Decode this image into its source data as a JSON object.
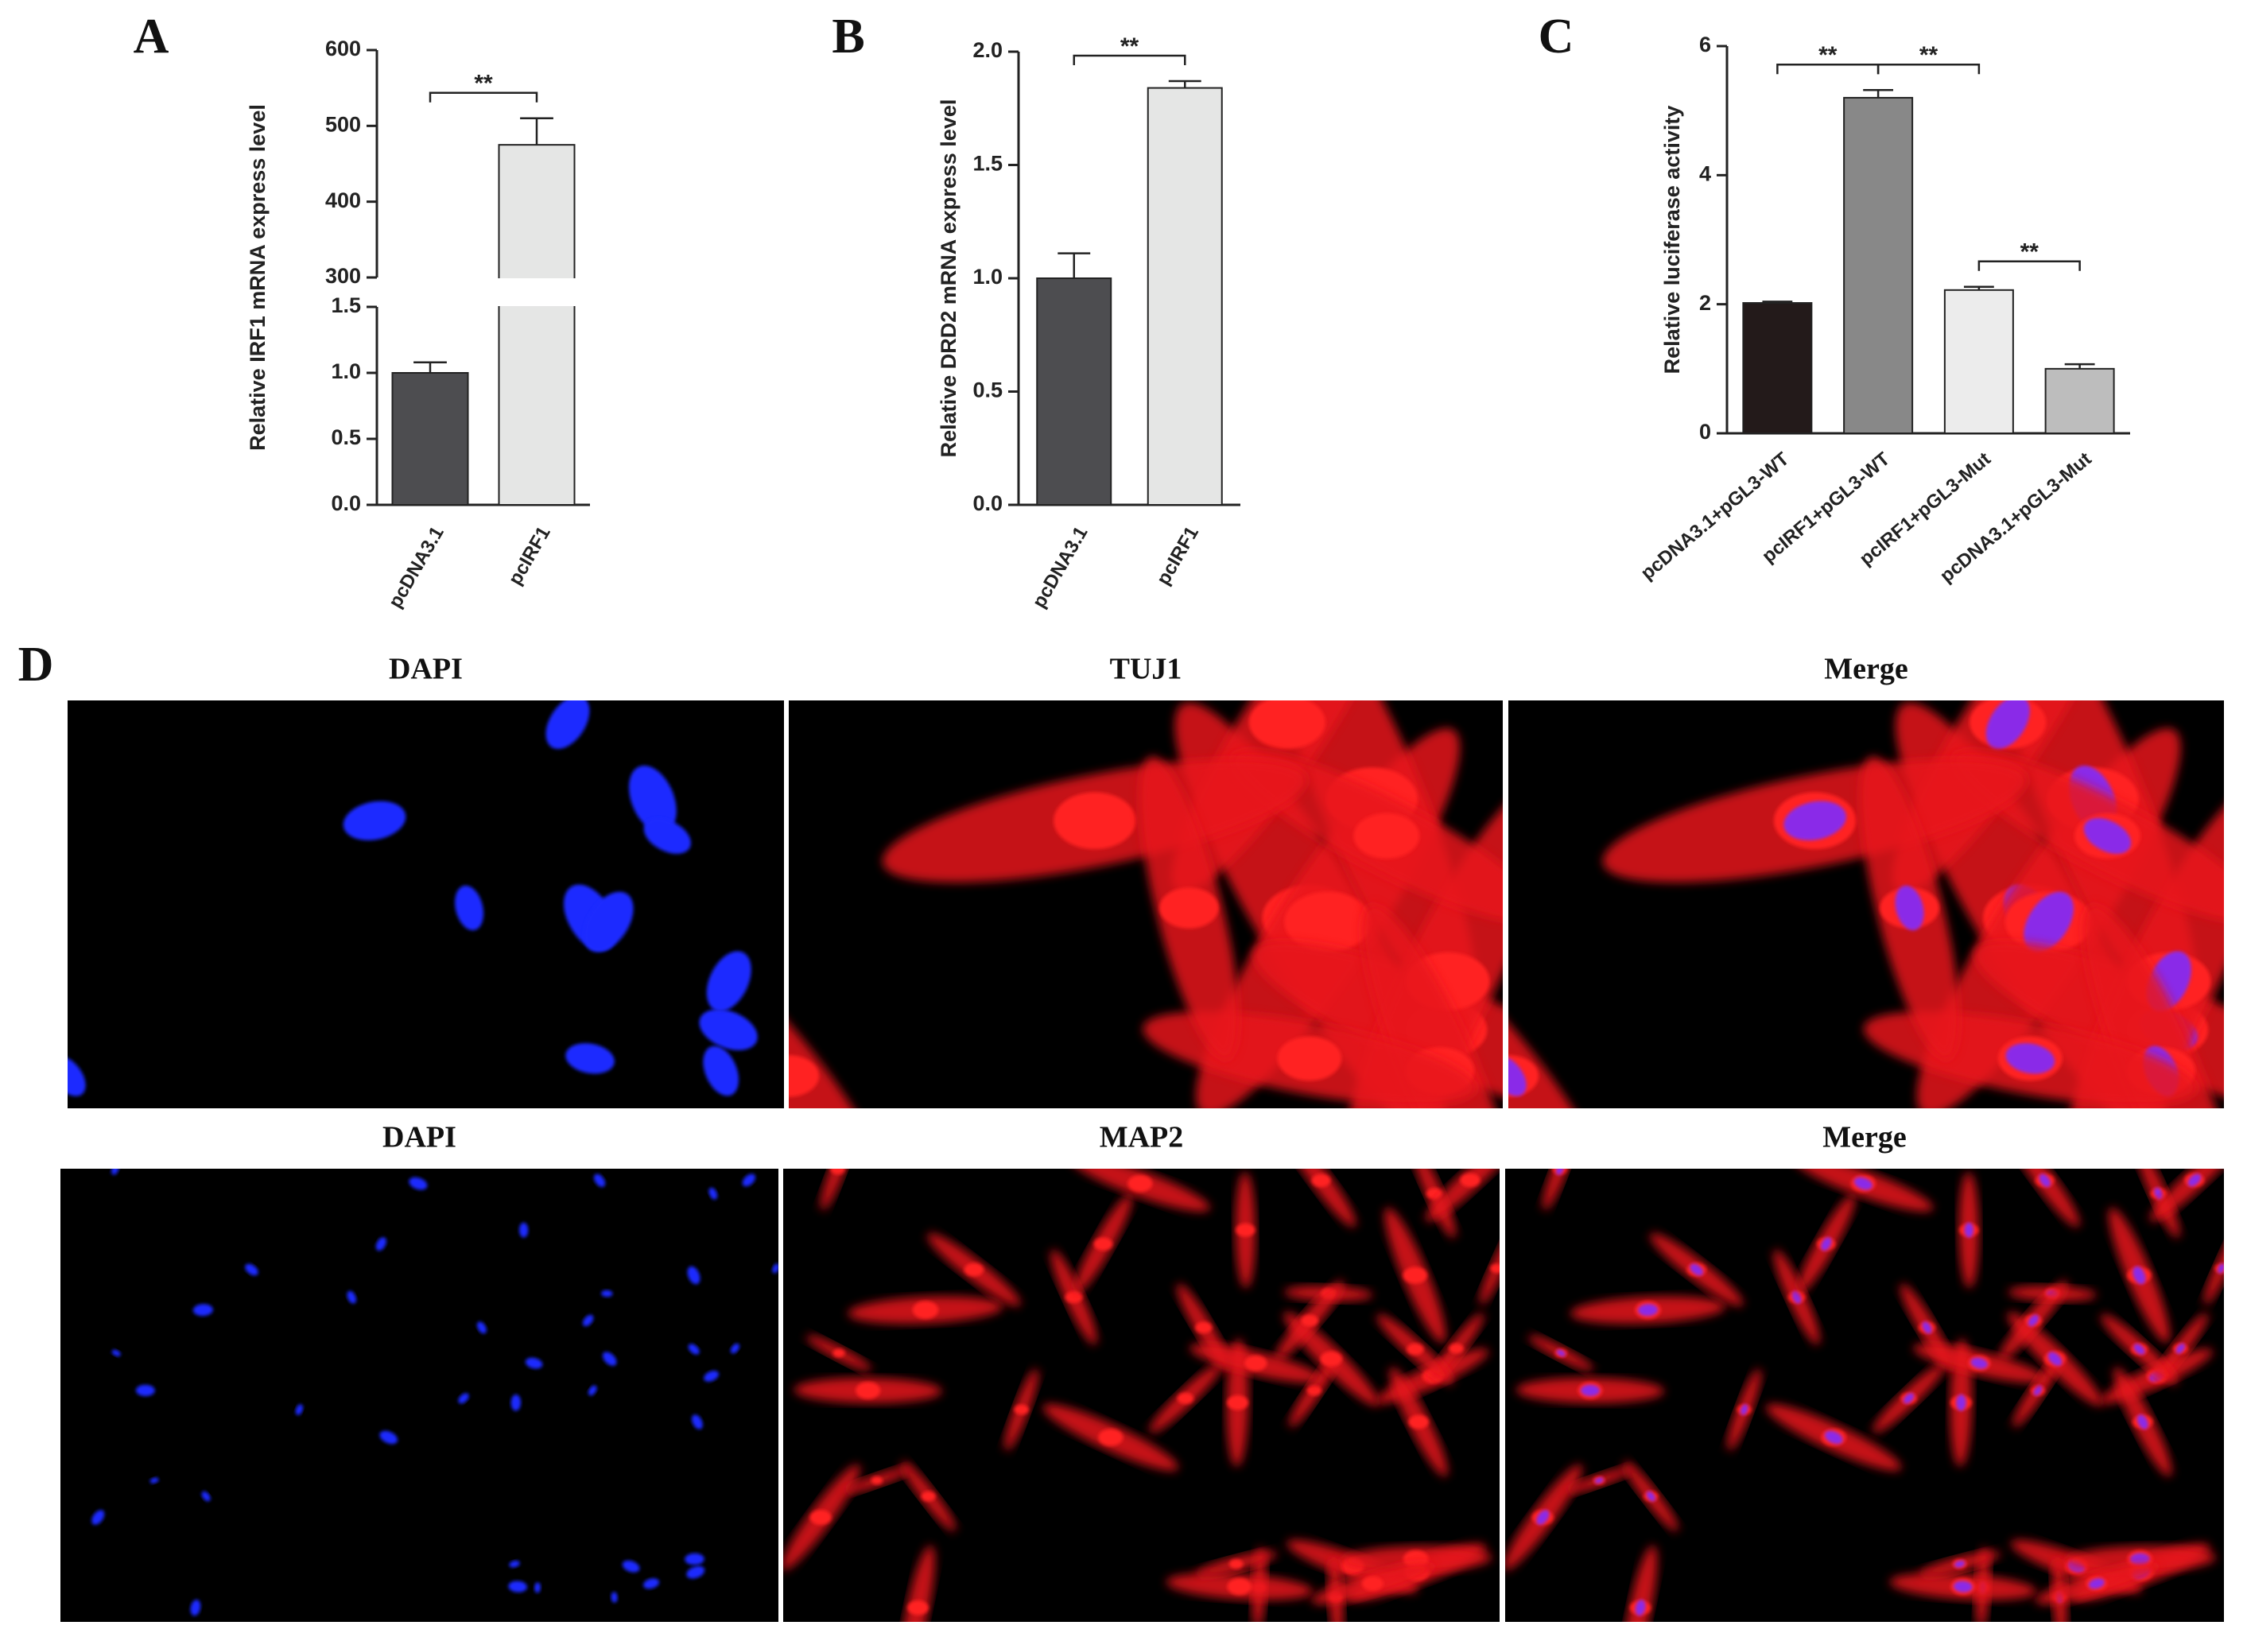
{
  "chart_data": [
    {
      "type": "bar",
      "y_label": "Relative IRF1 mRNA express level",
      "categories": [
        "pcDNA3.1",
        "pcIRF1"
      ],
      "values": [
        1.0,
        475
      ],
      "errors": [
        0.08,
        35
      ],
      "colors": [
        "#4d4d50",
        "#e5e6e5"
      ],
      "ylim": [
        0,
        600
      ],
      "ybreak": [
        1.5,
        300
      ],
      "yticks": [
        {
          "value": 0,
          "label": "0.0"
        },
        0.5,
        {
          "value": 1,
          "label": "1.0"
        },
        1.5,
        300,
        400,
        500,
        600
      ],
      "annotations": [
        {
          "from": 0,
          "to": 1,
          "text": "**"
        }
      ]
    },
    {
      "type": "bar",
      "y_label": "Relative DRD2 mRNA express level",
      "categories": [
        "pcDNA3.1",
        "pcIRF1"
      ],
      "values": [
        1.0,
        1.84
      ],
      "errors": [
        0.11,
        0.03
      ],
      "colors": [
        "#4d4d50",
        "#e5e6e5"
      ],
      "ylim": [
        0,
        2
      ],
      "yticks": [
        {
          "value": 0,
          "label": "0.0"
        },
        0.5,
        {
          "value": 1,
          "label": "1.0"
        },
        1.5,
        {
          "value": 2,
          "label": "2.0"
        }
      ],
      "annotations": [
        {
          "from": 0,
          "to": 1,
          "text": "**"
        }
      ]
    },
    {
      "type": "bar",
      "y_label": "Relative luciferase activity",
      "categories": [
        "pcDNA3.1+pGL3-WT",
        "pcIRF1+pGL3-WT",
        "pcIRF1+pGL3-Mut",
        "pcDNA3.1+pGL3-Mut"
      ],
      "values": [
        2.02,
        5.2,
        2.22,
        1.0
      ],
      "errors": [
        0.02,
        0.12,
        0.05,
        0.07
      ],
      "colors": [
        "#231a1a",
        "#888888",
        "#ececec",
        "#bdbdbd"
      ],
      "ylim": [
        0,
        6
      ],
      "yticks": [
        0,
        2,
        4,
        6
      ],
      "annotations": [
        {
          "from": 0,
          "to": 1,
          "text": "**"
        },
        {
          "from": 1,
          "to": 2,
          "text": "**"
        },
        {
          "from": 2,
          "to": 3,
          "text": "**"
        }
      ]
    }
  ],
  "panel_labels": [
    "A",
    "B",
    "C",
    "D"
  ],
  "image_titles": [
    "DAPI",
    "TUJ1",
    "Merge",
    "DAPI",
    "MAP2",
    "Merge"
  ]
}
